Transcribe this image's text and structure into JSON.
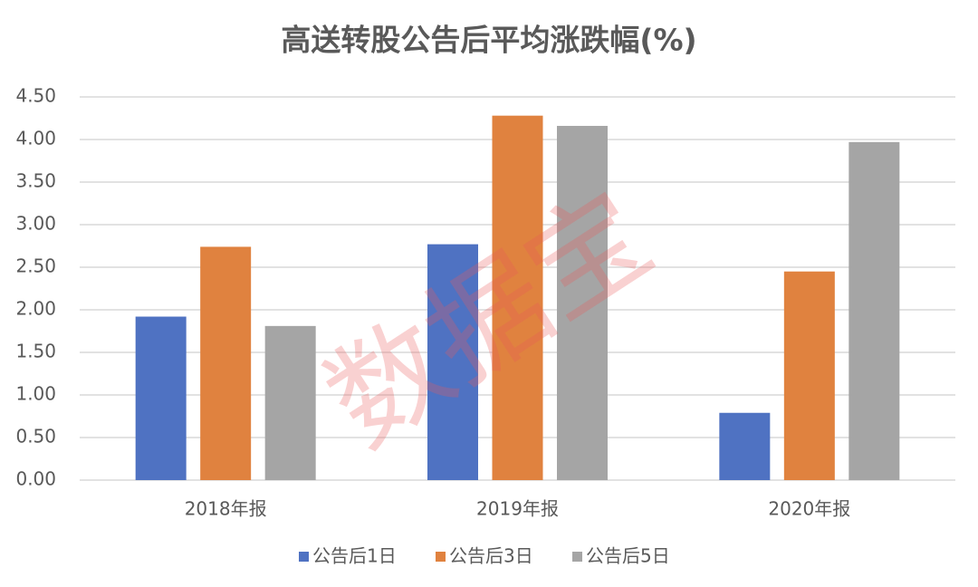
{
  "chart_data": {
    "type": "bar",
    "title": "高送转股公告后平均涨跌幅(%)",
    "watermark": "数据宝",
    "categories": [
      "2018年报",
      "2019年报",
      "2020年报"
    ],
    "series": [
      {
        "name": "公告后1日",
        "color": "#4f72c2",
        "values": [
          1.92,
          2.77,
          0.79
        ]
      },
      {
        "name": "公告后3日",
        "color": "#e0823f",
        "values": [
          2.74,
          4.28,
          2.45
        ]
      },
      {
        "name": "公告后5日",
        "color": "#a5a5a5",
        "values": [
          1.81,
          4.16,
          3.97
        ]
      }
    ],
    "ylim": [
      0,
      4.5
    ],
    "yticks": [
      {
        "value": 0,
        "label": "0.00"
      },
      {
        "value": 0.5,
        "label": "0.50"
      },
      {
        "value": 1,
        "label": "1.00"
      },
      {
        "value": 1.5,
        "label": "1.50"
      },
      {
        "value": 2,
        "label": "2.00"
      },
      {
        "value": 2.5,
        "label": "2.50"
      },
      {
        "value": 3,
        "label": "3.00"
      },
      {
        "value": 3.5,
        "label": "3.50"
      },
      {
        "value": 4,
        "label": "4.00"
      },
      {
        "value": 4.5,
        "label": "4.50"
      }
    ],
    "grid": true,
    "legend": "bottom"
  }
}
